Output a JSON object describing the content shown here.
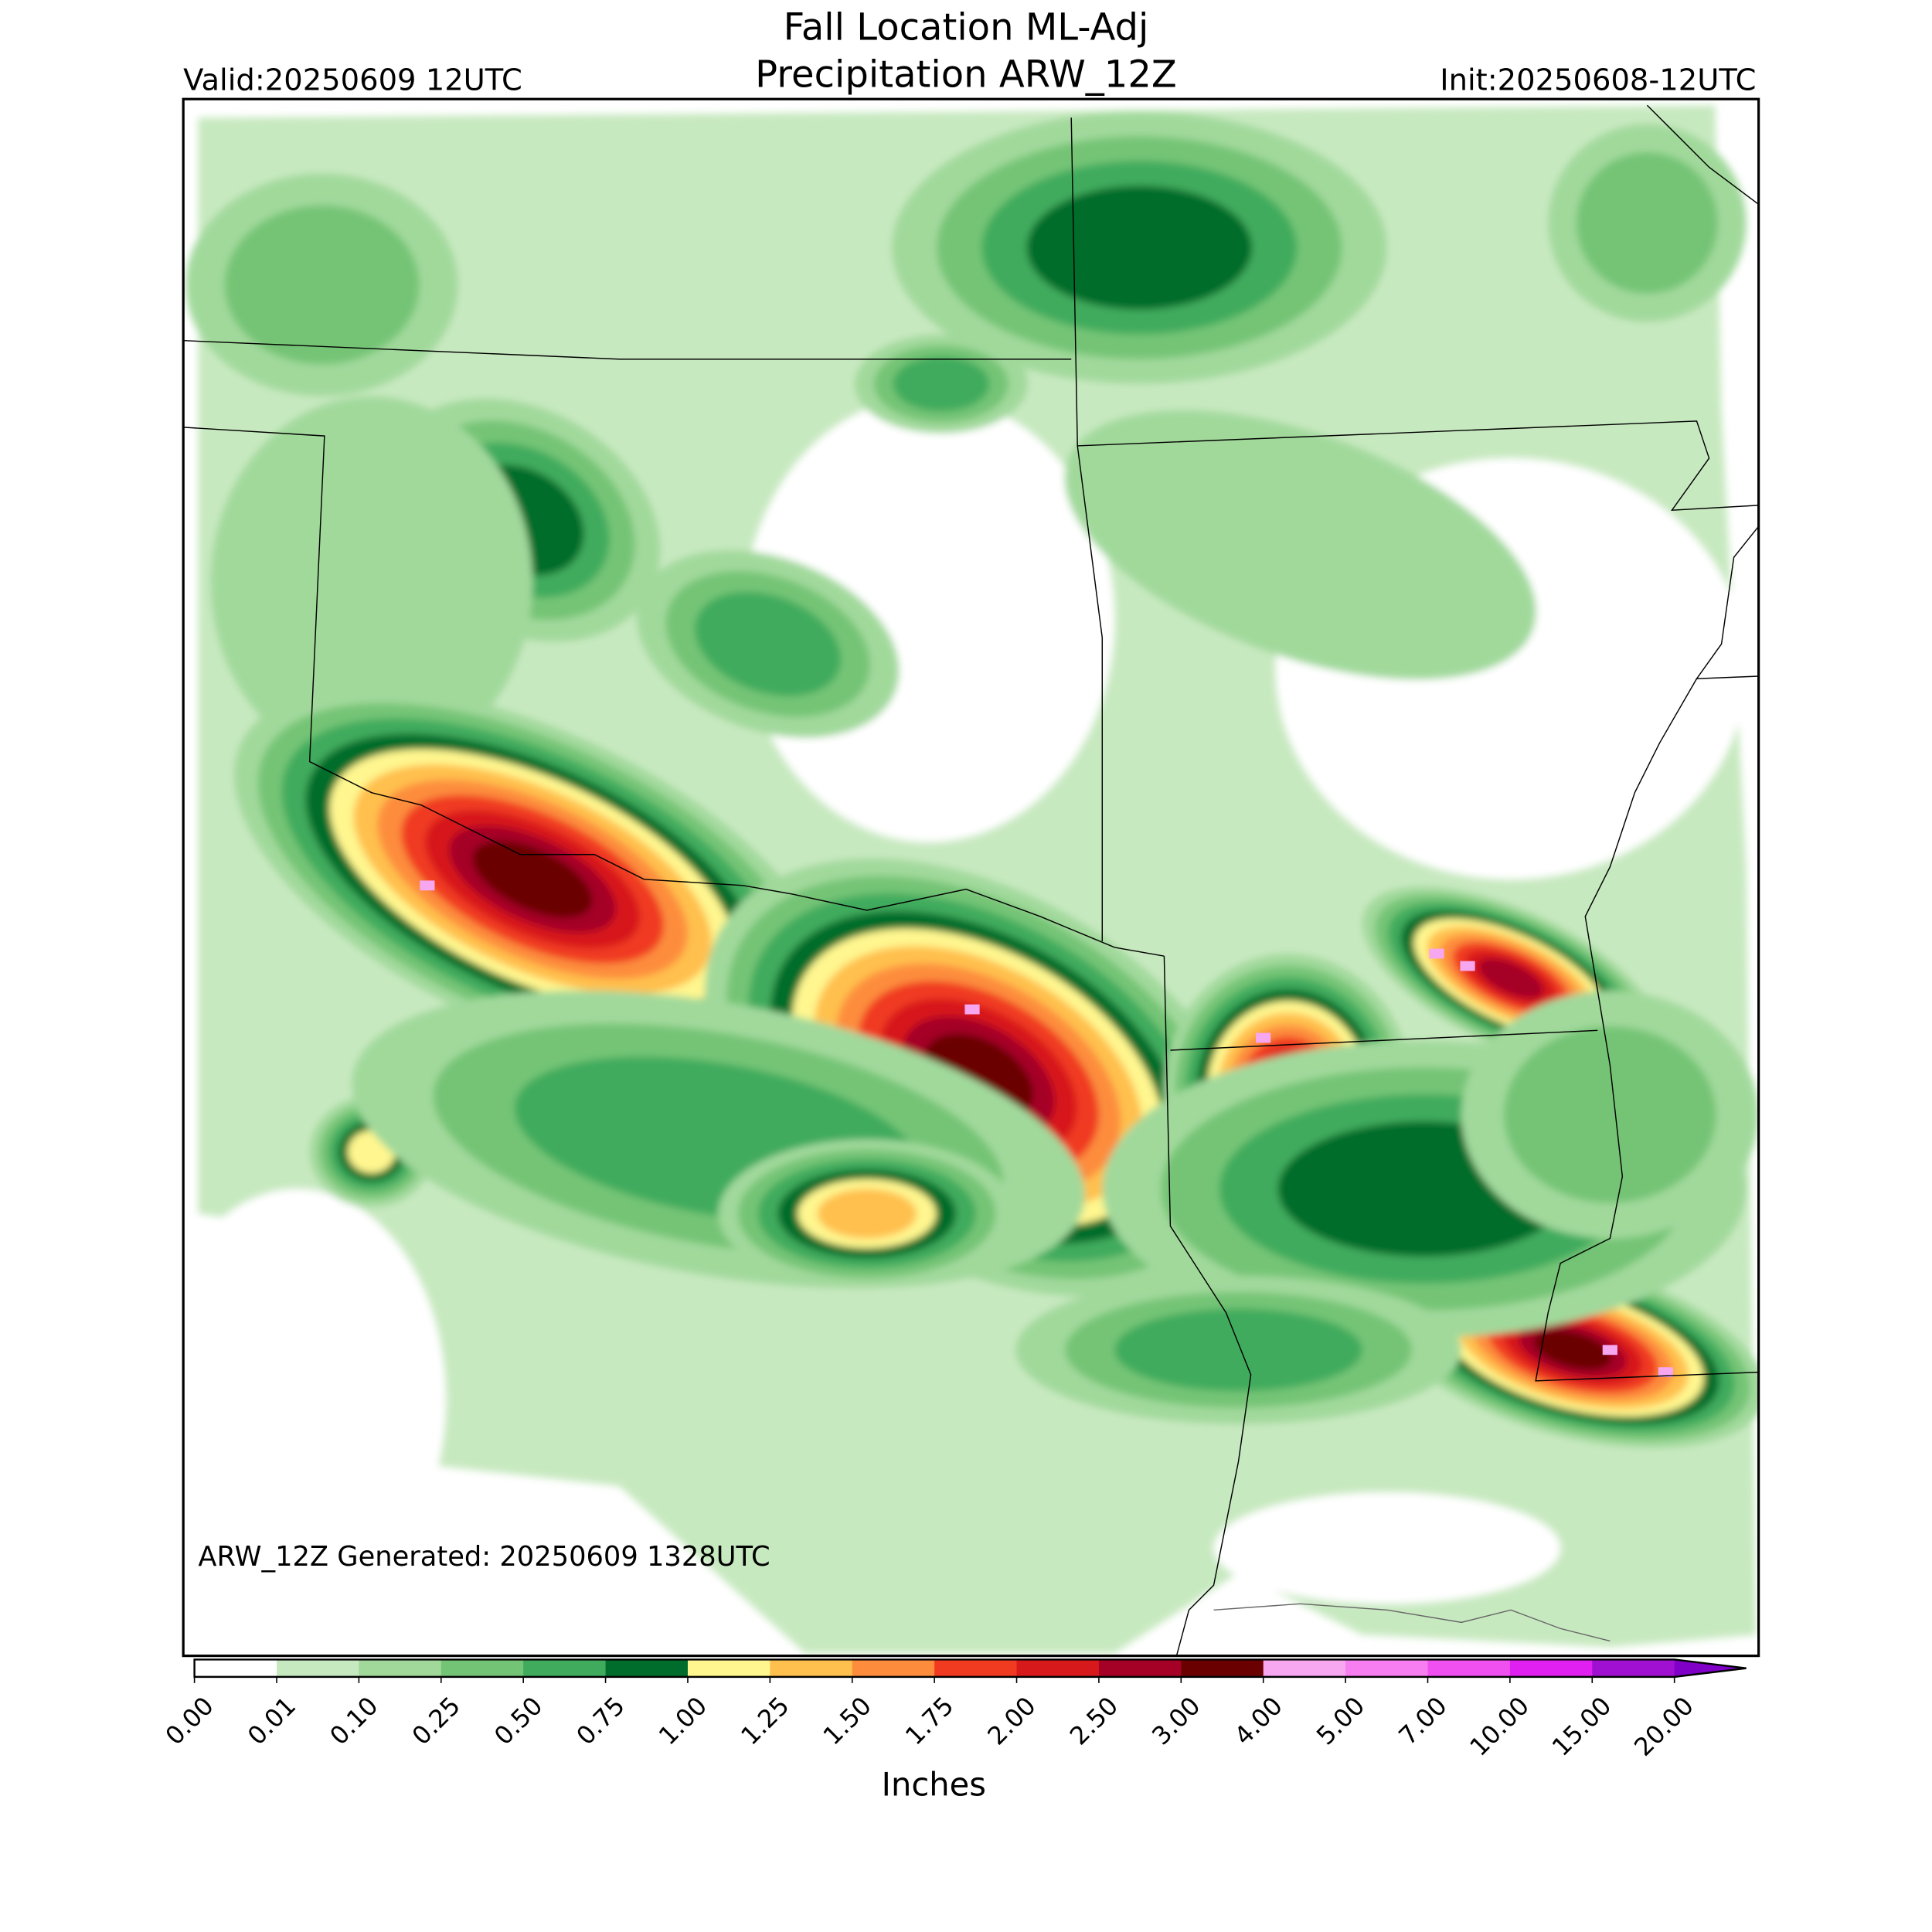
{
  "header": {
    "title": [
      "Fall Location ML-Adj",
      "Precipitation ARW_12Z"
    ],
    "valid": "Valid:20250609 12UTC",
    "init": "Init:20250608-12UTC"
  },
  "footer_note": "ARW_12Z Generated: 20250609 1328UTC",
  "colorbar": {
    "label": "Inches",
    "ticks": [
      "0.00",
      "0.01",
      "0.10",
      "0.25",
      "0.50",
      "0.75",
      "1.00",
      "1.25",
      "1.50",
      "1.75",
      "2.00",
      "2.50",
      "3.00",
      "4.00",
      "5.00",
      "7.00",
      "10.00",
      "15.00",
      "20.00"
    ],
    "colors": [
      "#ffffff",
      "#c7e9c0",
      "#a1d99b",
      "#74c476",
      "#41ab5d",
      "#006d2c",
      "#fff68f",
      "#ffc04d",
      "#fd8d3c",
      "#f03b20",
      "#d7191c",
      "#a50026",
      "#6b0000",
      "#f7a6f0",
      "#f77ef0",
      "#f050f0",
      "#e020f0",
      "#a010d0"
    ],
    "extend_color": "#8000c8"
  }
}
